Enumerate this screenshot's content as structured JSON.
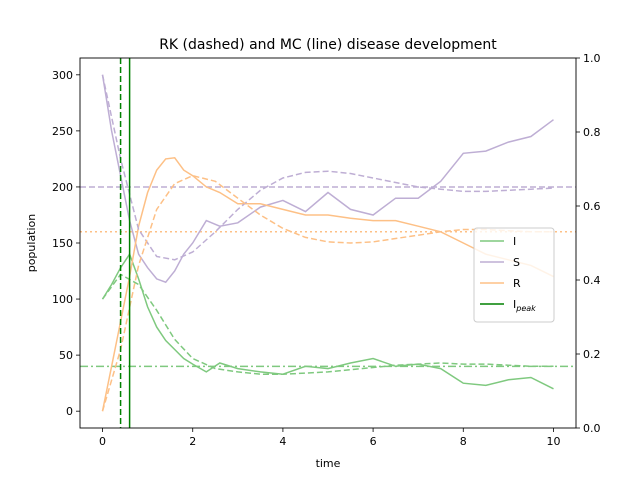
{
  "chart_data": {
    "type": "line",
    "title": "RK (dashed) and MC (line) disease development",
    "xlabel": "time",
    "ylabel": "population",
    "xlim": [
      -0.5,
      10.5
    ],
    "ylim": [
      -15,
      315
    ],
    "y2lim": [
      0.0,
      1.0
    ],
    "x_ticks": [
      "0",
      "2",
      "4",
      "6",
      "8",
      "10"
    ],
    "y_ticks": [
      "0",
      "50",
      "100",
      "150",
      "200",
      "250",
      "300"
    ],
    "y2_ticks": [
      "0.0",
      "0.2",
      "0.4",
      "0.6",
      "0.8",
      "1.0"
    ],
    "grid": false,
    "legend_position": "center-right",
    "colors": {
      "I": "#7fc97f",
      "S": "#beaed4",
      "R": "#fdc086",
      "peak": "#008000"
    },
    "series": [
      {
        "name": "I",
        "style": "line",
        "x": [
          0,
          0.2,
          0.4,
          0.6,
          0.8,
          1.0,
          1.2,
          1.4,
          1.6,
          1.8,
          2.0,
          2.3,
          2.6,
          3.0,
          3.5,
          4.0,
          4.5,
          5.0,
          5.5,
          6.0,
          6.5,
          7.0,
          7.5,
          8.0,
          8.5,
          9.0,
          9.5,
          10.0
        ],
        "y": [
          100,
          113,
          128,
          140,
          118,
          93,
          75,
          63,
          55,
          47,
          42,
          35,
          43,
          38,
          35,
          33,
          40,
          38,
          43,
          47,
          40,
          42,
          38,
          25,
          23,
          28,
          30,
          20
        ]
      },
      {
        "name": "S",
        "style": "line",
        "x": [
          0,
          0.2,
          0.4,
          0.6,
          0.8,
          1.0,
          1.2,
          1.4,
          1.6,
          1.8,
          2.0,
          2.3,
          2.6,
          3.0,
          3.5,
          4.0,
          4.5,
          5.0,
          5.5,
          6.0,
          6.5,
          7.0,
          7.5,
          8.0,
          8.5,
          9.0,
          9.5,
          10.0
        ],
        "y": [
          300,
          250,
          210,
          170,
          140,
          128,
          118,
          115,
          125,
          140,
          150,
          170,
          165,
          168,
          182,
          188,
          178,
          195,
          180,
          175,
          190,
          190,
          205,
          230,
          232,
          240,
          245,
          260
        ]
      },
      {
        "name": "R",
        "style": "line",
        "x": [
          0,
          0.2,
          0.4,
          0.6,
          0.8,
          1.0,
          1.2,
          1.4,
          1.6,
          1.8,
          2.0,
          2.3,
          2.6,
          3.0,
          3.5,
          4.0,
          4.5,
          5.0,
          5.5,
          6.0,
          6.5,
          7.0,
          7.5,
          8.0,
          8.5,
          9.0,
          9.5,
          10.0
        ],
        "y": [
          0,
          40,
          80,
          120,
          165,
          195,
          215,
          225,
          226,
          215,
          210,
          200,
          195,
          185,
          185,
          180,
          175,
          175,
          172,
          170,
          170,
          165,
          160,
          150,
          140,
          135,
          130,
          120
        ]
      },
      {
        "name": "I (RK)",
        "style": "dashed",
        "x": [
          0,
          0.4,
          0.8,
          1.2,
          1.6,
          2.0,
          2.5,
          3.0,
          3.5,
          4.0,
          4.5,
          5.0,
          5.5,
          6.0,
          6.5,
          7.0,
          7.5,
          8.0,
          8.5,
          9.0,
          9.5,
          10.0
        ],
        "y": [
          100,
          122,
          113,
          90,
          64,
          47,
          38,
          35,
          33,
          33,
          34,
          35,
          37,
          39,
          41,
          42,
          43,
          42,
          42,
          41,
          40,
          40
        ]
      },
      {
        "name": "S (RK)",
        "style": "dashed",
        "x": [
          0,
          0.4,
          0.8,
          1.2,
          1.6,
          2.0,
          2.5,
          3.0,
          3.5,
          4.0,
          4.5,
          5.0,
          5.5,
          6.0,
          6.5,
          7.0,
          7.5,
          8.0,
          8.5,
          9.0,
          9.5,
          10.0
        ],
        "y": [
          300,
          225,
          162,
          138,
          135,
          142,
          160,
          180,
          197,
          208,
          213,
          214,
          212,
          208,
          204,
          200,
          198,
          196,
          196,
          197,
          198,
          199
        ]
      },
      {
        "name": "R (RK)",
        "style": "dashed",
        "x": [
          0,
          0.4,
          0.8,
          1.2,
          1.6,
          2.0,
          2.5,
          3.0,
          3.5,
          4.0,
          4.5,
          5.0,
          5.5,
          6.0,
          6.5,
          7.0,
          7.5,
          8.0,
          8.5,
          9.0,
          9.5,
          10.0
        ],
        "y": [
          0,
          55,
          130,
          180,
          203,
          210,
          205,
          190,
          175,
          163,
          155,
          151,
          150,
          151,
          154,
          157,
          160,
          162,
          162,
          161,
          160,
          160
        ]
      }
    ],
    "hlines": [
      {
        "name": "S",
        "y": 200,
        "style": "dashed"
      },
      {
        "name": "R",
        "y": 160,
        "style": "dotted"
      },
      {
        "name": "I",
        "y": 40,
        "style": "dashdot"
      }
    ],
    "vlines": [
      {
        "name": "I_peak (RK)",
        "x": 0.4,
        "style": "dashed"
      },
      {
        "name": "I_peak",
        "x": 0.6,
        "style": "solid"
      }
    ],
    "legend": [
      {
        "label": "I",
        "key": "I"
      },
      {
        "label": "S",
        "key": "S"
      },
      {
        "label": "R",
        "key": "R"
      },
      {
        "label": "I",
        "sub": "peak",
        "key": "peak"
      }
    ]
  }
}
